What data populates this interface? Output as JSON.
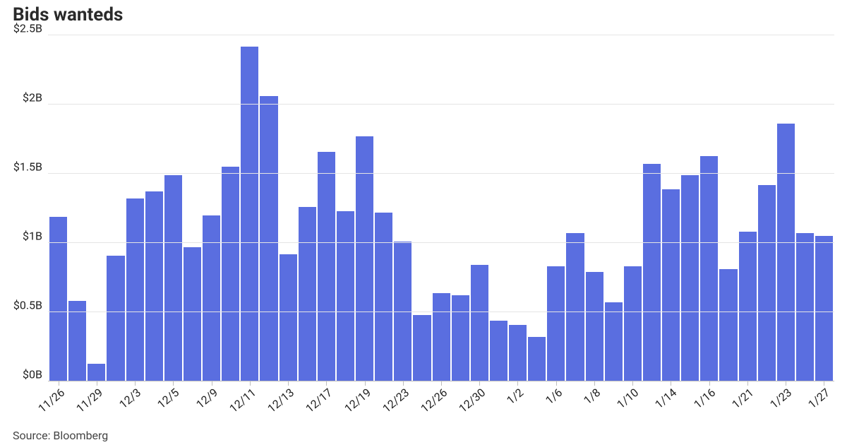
{
  "title": "Bids wanteds",
  "source": "Source: Bloomberg",
  "chart": {
    "type": "bar",
    "bar_color": "#5a6ee0",
    "background_color": "#ffffff",
    "grid_color": "#e5e5e5",
    "baseline_color": "#bdbdbd",
    "title_fontsize": 26,
    "title_color": "#2a2a2a",
    "label_fontsize": 16,
    "label_color": "#222222",
    "y_axis": {
      "min": 0,
      "max": 2.5,
      "tick_step": 0.5,
      "ticks": [
        0,
        0.5,
        1,
        1.5,
        2,
        2.5
      ],
      "tick_labels": [
        "$0B",
        "$0.5B",
        "$1B",
        "$1.5B",
        "$2B",
        "$2.5B"
      ]
    },
    "data": [
      {
        "date": "11/26",
        "value": 1.19,
        "show_label": true
      },
      {
        "date": "11/27",
        "value": 0.58,
        "show_label": false
      },
      {
        "date": "11/29",
        "value": 0.13,
        "show_label": true
      },
      {
        "date": "11/30",
        "value": 0.91,
        "show_label": false
      },
      {
        "date": "12/3",
        "value": 1.32,
        "show_label": true
      },
      {
        "date": "12/4",
        "value": 1.37,
        "show_label": false
      },
      {
        "date": "12/5",
        "value": 1.49,
        "show_label": true
      },
      {
        "date": "12/6",
        "value": 0.97,
        "show_label": false
      },
      {
        "date": "12/9",
        "value": 1.2,
        "show_label": true
      },
      {
        "date": "12/10",
        "value": 1.55,
        "show_label": false
      },
      {
        "date": "12/11",
        "value": 2.42,
        "show_label": true
      },
      {
        "date": "12/12",
        "value": 2.06,
        "show_label": false
      },
      {
        "date": "12/13",
        "value": 0.92,
        "show_label": true
      },
      {
        "date": "12/16",
        "value": 1.26,
        "show_label": false
      },
      {
        "date": "12/17",
        "value": 1.66,
        "show_label": true
      },
      {
        "date": "12/18",
        "value": 1.23,
        "show_label": false
      },
      {
        "date": "12/19",
        "value": 1.77,
        "show_label": true
      },
      {
        "date": "12/20",
        "value": 1.22,
        "show_label": false
      },
      {
        "date": "12/23",
        "value": 1.01,
        "show_label": true
      },
      {
        "date": "12/24",
        "value": 0.48,
        "show_label": false
      },
      {
        "date": "12/26",
        "value": 0.64,
        "show_label": true
      },
      {
        "date": "12/27",
        "value": 0.62,
        "show_label": false
      },
      {
        "date": "12/30",
        "value": 0.84,
        "show_label": true
      },
      {
        "date": "12/31",
        "value": 0.44,
        "show_label": false
      },
      {
        "date": "1/2",
        "value": 0.41,
        "show_label": true
      },
      {
        "date": "1/3",
        "value": 0.32,
        "show_label": false
      },
      {
        "date": "1/6",
        "value": 0.83,
        "show_label": true
      },
      {
        "date": "1/7",
        "value": 1.07,
        "show_label": false
      },
      {
        "date": "1/8",
        "value": 0.79,
        "show_label": true
      },
      {
        "date": "1/9",
        "value": 0.57,
        "show_label": false
      },
      {
        "date": "1/10",
        "value": 0.83,
        "show_label": true
      },
      {
        "date": "1/13",
        "value": 1.57,
        "show_label": false
      },
      {
        "date": "1/14",
        "value": 1.39,
        "show_label": true
      },
      {
        "date": "1/15",
        "value": 1.49,
        "show_label": false
      },
      {
        "date": "1/16",
        "value": 1.63,
        "show_label": true
      },
      {
        "date": "1/17",
        "value": 0.81,
        "show_label": false
      },
      {
        "date": "1/21",
        "value": 1.08,
        "show_label": true
      },
      {
        "date": "1/22",
        "value": 1.42,
        "show_label": false
      },
      {
        "date": "1/23",
        "value": 1.86,
        "show_label": true
      },
      {
        "date": "1/24",
        "value": 1.07,
        "show_label": false
      },
      {
        "date": "1/27",
        "value": 1.05,
        "show_label": true
      }
    ]
  }
}
